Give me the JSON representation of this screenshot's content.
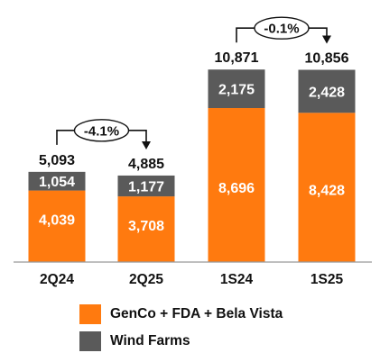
{
  "chart_data": {
    "type": "bar",
    "stacked": true,
    "categories": [
      "2Q24",
      "2Q25",
      "1S24",
      "1S25"
    ],
    "series": [
      {
        "name": "GenCo + FDA + Bela Vista",
        "color": "#FF7A0F",
        "values": [
          4039,
          3708,
          8696,
          8428
        ]
      },
      {
        "name": "Wind Farms",
        "color": "#5A5A5A",
        "values": [
          1054,
          1177,
          2175,
          2428
        ]
      }
    ],
    "totals": [
      5093,
      4885,
      10871,
      10856
    ],
    "value_labels": {
      "segments": [
        [
          "4,039",
          "3,708",
          "8,696",
          "8,428"
        ],
        [
          "1,054",
          "1,177",
          "2,175",
          "2,428"
        ]
      ],
      "totals": [
        "5,093",
        "4,885",
        "10,871",
        "10,856"
      ]
    },
    "annotations": [
      {
        "text": "-4.1%",
        "from": "2Q24",
        "to": "2Q25"
      },
      {
        "text": "-0.1%",
        "from": "1S24",
        "to": "1S25"
      }
    ],
    "legend_position": "bottom"
  }
}
